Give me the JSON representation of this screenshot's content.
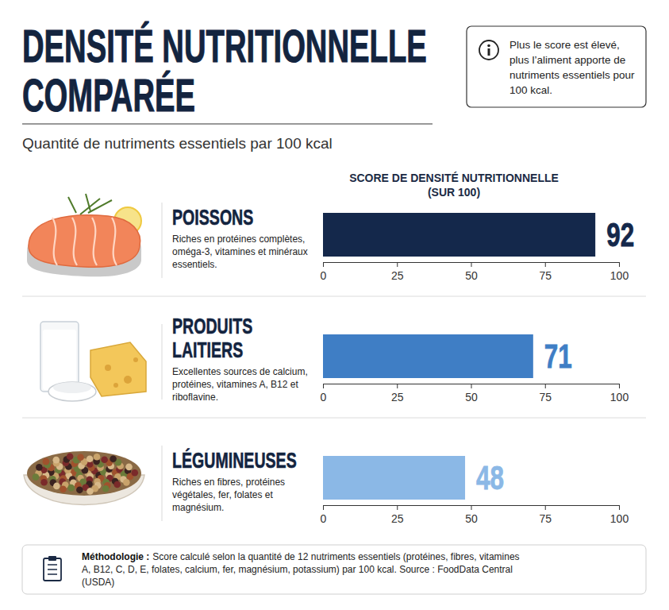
{
  "chart_data": {
    "type": "bar",
    "orientation": "horizontal",
    "title": [
      "DENSITÉ NUTRITIONNELLE",
      "COMPARÉE"
    ],
    "subtitle": "Quantité de nutriments essentiels par 100 kcal",
    "info": "Plus le score est élevé, plus l’aliment apporte de nutriments essentiels pour 100 kcal.",
    "xlabel": "SCORE DE DENSITÉ NUTRITIONNELLE (SUR 100)",
    "categories": [
      "POISSONS",
      "PRODUITS LAITIERS",
      "LÉGUMINEUSES"
    ],
    "descriptions": [
      "Riches en protéines complètes, oméga-3, vitamines et minéraux essentiels.",
      "Excellentes sources de calcium, protéines, vitamines A, B12 et riboflavine.",
      "Riches en fibres, protéines végétales, fer, folates et magnésium."
    ],
    "values": [
      92,
      71,
      48
    ],
    "colors": [
      "#14284b",
      "#3f7ec5",
      "#8bb8e6"
    ],
    "xlim": [
      0,
      100
    ],
    "xticks": [
      0,
      25,
      50,
      75,
      100
    ],
    "grid": false,
    "data_labels": true,
    "methodology_label": "Méthodologie :",
    "methodology": "Score calculé selon la quantité de 12 nutriments essentiels (protéines, fibres, vitamines A, B12, C, D, E, folates, calcium, fer, magnésium, potassium) par 100 kcal. Source : FoodData Central (USDA)"
  }
}
